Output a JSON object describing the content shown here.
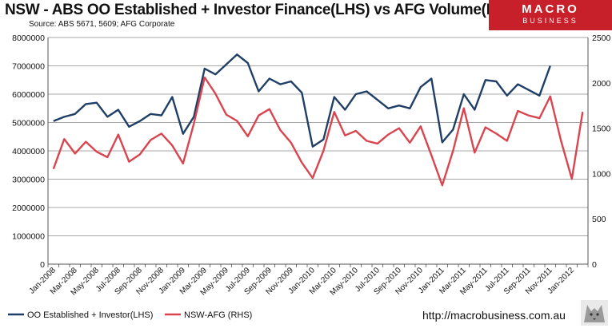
{
  "header": {
    "title": "NSW - ABS OO Established + Investor Finance(LHS) vs AFG Volume(RHS)",
    "source": "Source: ABS 5671, 5609; AFG Corporate"
  },
  "logo": {
    "line1": "MACRO",
    "line2": "BUSINESS",
    "color": "#c8202a"
  },
  "footer": {
    "url": "http://macrobusiness.com.au"
  },
  "chart_data": {
    "type": "line",
    "title": "NSW - ABS OO Established + Investor Finance(LHS) vs AFG Volume(RHS)",
    "x_tick_labels": [
      "Jan-2008",
      "Mar-2008",
      "May-2008",
      "Jul-2008",
      "Sep-2008",
      "Nov-2008",
      "Jan-2009",
      "Mar-2009",
      "May-2009",
      "Jul-2009",
      "Sep-2009",
      "Nov-2009",
      "Jan-2010",
      "Mar-2010",
      "May-2010",
      "Jul-2010",
      "Sep-2010",
      "Nov-2010",
      "Jan-2011",
      "Mar-2011",
      "May-2011",
      "Jul-2011",
      "Sep-2011",
      "Nov-2011",
      "Jan-2012"
    ],
    "x_count": 50,
    "y_left": {
      "min": 0,
      "max": 8000000,
      "ticks": [
        0,
        1000000,
        2000000,
        3000000,
        4000000,
        5000000,
        6000000,
        7000000,
        8000000
      ]
    },
    "y_right": {
      "min": 0,
      "max": 2500,
      "ticks": [
        0,
        500,
        1000,
        1500,
        2000,
        2500
      ]
    },
    "series": [
      {
        "name": "OO Established + Investor(LHS)",
        "axis": "left",
        "color": "#1f3f66",
        "values": [
          5050000,
          5200000,
          5300000,
          5650000,
          5700000,
          5200000,
          5450000,
          4850000,
          5050000,
          5300000,
          5250000,
          5900000,
          4600000,
          5200000,
          6900000,
          6700000,
          7050000,
          7400000,
          7100000,
          6100000,
          6550000,
          6350000,
          6450000,
          6050000,
          4150000,
          4400000,
          5900000,
          5450000,
          6000000,
          6100000,
          5800000,
          5500000,
          5600000,
          5500000,
          6250000,
          6550000,
          4300000,
          4750000,
          6000000,
          5450000,
          6500000,
          6450000,
          5950000,
          6350000,
          6150000,
          5950000,
          7000000
        ]
      },
      {
        "name": "NSW-AFG (RHS)",
        "axis": "right",
        "color": "#d9454f",
        "values": [
          1050,
          1380,
          1220,
          1350,
          1240,
          1180,
          1430,
          1130,
          1210,
          1370,
          1440,
          1310,
          1110,
          1550,
          2060,
          1880,
          1650,
          1580,
          1410,
          1640,
          1710,
          1480,
          1340,
          1120,
          950,
          1250,
          1680,
          1420,
          1470,
          1360,
          1330,
          1430,
          1500,
          1340,
          1520,
          1200,
          870,
          1250,
          1720,
          1230,
          1510,
          1440,
          1360,
          1690,
          1640,
          1610,
          1850,
          1360,
          940,
          1680
        ]
      }
    ],
    "legend": [
      "OO Established + Investor(LHS)",
      "NSW-AFG (RHS)"
    ],
    "legend_position": "bottom-left",
    "grid": "horizontal"
  }
}
